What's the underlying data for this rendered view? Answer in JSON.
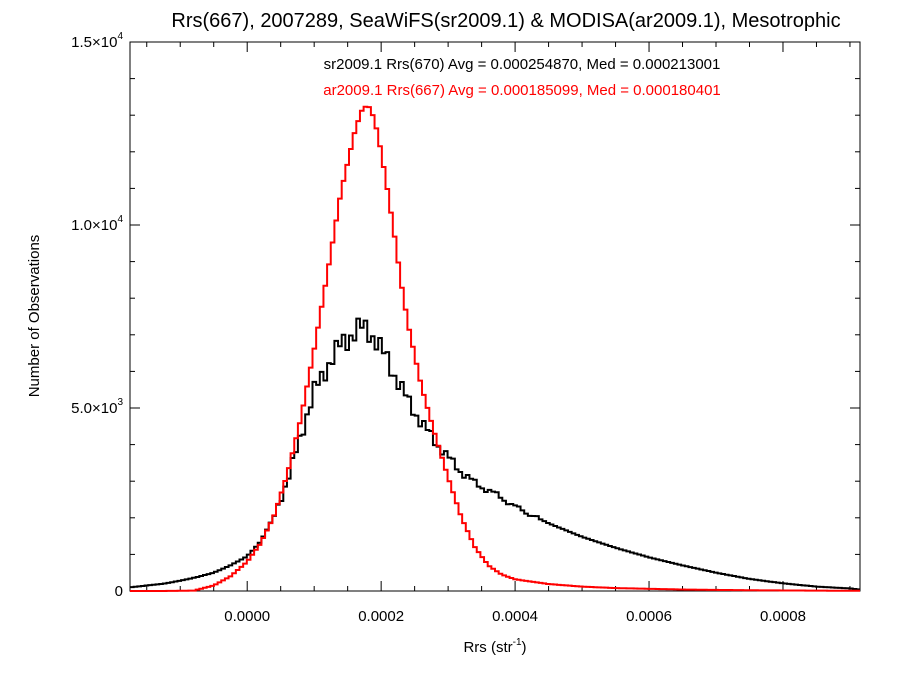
{
  "chart_data": {
    "type": "line",
    "title": "Rrs(667), 2007289, SeaWiFS(sr2009.1) & MODISA(ar2009.1), Mesotrophic",
    "xlabel": {
      "base": "Rrs (str",
      "sup": "-1",
      "end": ")"
    },
    "ylabel": "Number of Observations",
    "xlim": [
      -0.000175,
      0.000915
    ],
    "ylim": [
      0,
      15000
    ],
    "x_ticks": [
      {
        "value": 0.0,
        "label": "0.0000"
      },
      {
        "value": 0.0002,
        "label": "0.0002"
      },
      {
        "value": 0.0004,
        "label": "0.0004"
      },
      {
        "value": 0.0006,
        "label": "0.0006"
      },
      {
        "value": 0.0008,
        "label": "0.0008"
      }
    ],
    "y_ticks": [
      {
        "value": 0,
        "mant": "0",
        "exp": ""
      },
      {
        "value": 5000,
        "mant": "5.0×10",
        "exp": "3"
      },
      {
        "value": 10000,
        "mant": "1.0×10",
        "exp": "4"
      },
      {
        "value": 15000,
        "mant": "1.5×10",
        "exp": "4"
      }
    ],
    "grid": false,
    "legend_position": "top-center",
    "series": [
      {
        "name": "sr2009.1 Rrs(670) Avg = 0.000254870, Med = 0.000213001",
        "color": "#000000",
        "x": [
          -0.000175,
          -0.00015,
          -0.000125,
          -0.0001,
          -7.5e-05,
          -5e-05,
          -2.5e-05,
          0.0,
          2e-05,
          4e-05,
          6e-05,
          8e-05,
          0.0001,
          0.00012,
          0.00014,
          0.00016,
          0.00017,
          0.00018,
          0.00019,
          0.0002,
          0.00021,
          0.00022,
          0.00024,
          0.00026,
          0.00028,
          0.0003,
          0.00032,
          0.00034,
          0.00036,
          0.00038,
          0.0004,
          0.00042,
          0.00045,
          0.0005,
          0.00055,
          0.0006,
          0.00065,
          0.0007,
          0.00075,
          0.0008,
          0.00085,
          0.0009,
          0.000915
        ],
        "y": [
          100,
          150,
          200,
          280,
          380,
          500,
          700,
          950,
          1350,
          2050,
          3000,
          4250,
          5450,
          6150,
          6750,
          7050,
          7200,
          7150,
          6900,
          6600,
          6300,
          5900,
          5200,
          4600,
          4100,
          3650,
          3250,
          2950,
          2750,
          2550,
          2300,
          2120,
          1850,
          1480,
          1180,
          920,
          700,
          500,
          330,
          210,
          120,
          70,
          40
        ]
      },
      {
        "name": "ar2009.1 Rrs(667) Avg = 0.000185099, Med = 0.000180401",
        "color": "#ff0000",
        "x": [
          -0.000175,
          -0.00013,
          -8e-05,
          -5e-05,
          -2.5e-05,
          0.0,
          2e-05,
          4e-05,
          6e-05,
          8e-05,
          0.0001,
          0.00012,
          0.00014,
          0.00016,
          0.00017,
          0.00018,
          0.00019,
          0.0002,
          0.00021,
          0.00022,
          0.00023,
          0.00024,
          0.00026,
          0.00028,
          0.0003,
          0.00032,
          0.00034,
          0.00036,
          0.00038,
          0.0004,
          0.00045,
          0.0005,
          0.00055,
          0.0006,
          0.00065,
          0.0007,
          0.00075,
          0.0008,
          0.00085,
          0.000915
        ],
        "y": [
          0,
          0,
          10,
          150,
          400,
          800,
          1300,
          2050,
          3200,
          4700,
          6600,
          8700,
          10900,
          12500,
          13100,
          13300,
          12900,
          12000,
          10900,
          9700,
          8400,
          7300,
          5600,
          4300,
          3100,
          2000,
          1200,
          700,
          450,
          320,
          190,
          120,
          80,
          60,
          40,
          30,
          20,
          15,
          10,
          5
        ]
      }
    ]
  }
}
